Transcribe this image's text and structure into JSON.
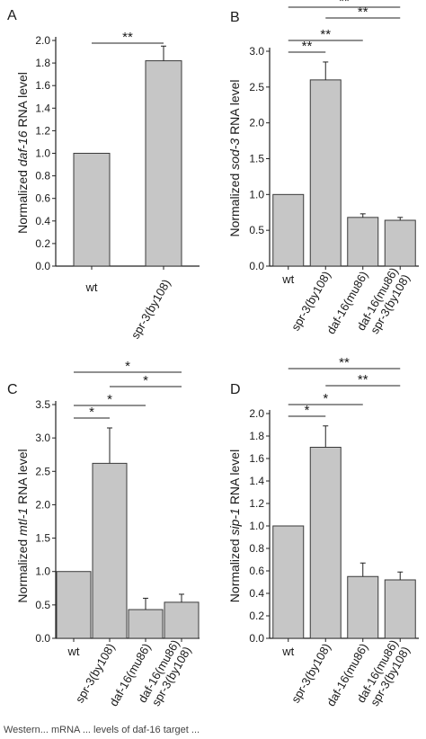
{
  "colors": {
    "bar": "#c6c6c6",
    "bar_stroke": "#3a3a3a",
    "axis": "#222222",
    "text": "#1a1a1a"
  },
  "caption": "Western... mRNA ... levels of daf-16 target ...",
  "chart_data": [
    {
      "type": "bar",
      "panel": "A",
      "categories": [
        "wt",
        "spr-3(by108)"
      ],
      "values": [
        1.0,
        1.82
      ],
      "errors": [
        0.0,
        0.13
      ],
      "ylabel": "Normalized daf-16 RNA level",
      "ylabel_gene": "daf-16",
      "ylim": [
        0.0,
        2.0
      ],
      "yticks": [
        "0.0",
        "0.2",
        "0.4",
        "0.6",
        "0.8",
        "1.0",
        "1.2",
        "1.4",
        "1.6",
        "1.8",
        "2.0"
      ],
      "significance": [
        {
          "from": 0,
          "to": 1,
          "label": "**"
        }
      ]
    },
    {
      "type": "bar",
      "panel": "B",
      "categories": [
        "wt",
        "spr-3(by108)",
        "daf-16(mu86)",
        "daf-16(mu86)\nspr-3(by108)"
      ],
      "values": [
        1.0,
        2.6,
        0.68,
        0.64
      ],
      "errors": [
        0.0,
        0.25,
        0.05,
        0.04
      ],
      "ylabel": "Normalized sod-3 RNA level",
      "ylabel_gene": "sod-3",
      "ylim": [
        0.0,
        3.0
      ],
      "yticks": [
        "0.0",
        "0.5",
        "1.0",
        "1.5",
        "2.0",
        "2.5",
        "3.0"
      ],
      "significance": [
        {
          "from": 0,
          "to": 1,
          "label": "**"
        },
        {
          "from": 0,
          "to": 2,
          "label": "**"
        },
        {
          "from": 1,
          "to": 3,
          "label": "**"
        },
        {
          "from": 0,
          "to": 3,
          "label": "**"
        }
      ]
    },
    {
      "type": "bar",
      "panel": "C",
      "categories": [
        "wt",
        "spr-3(by108)",
        "daf-16(mu86)",
        "daf-16(mu86)\nspr-3(by108)"
      ],
      "values": [
        1.0,
        2.62,
        0.43,
        0.54
      ],
      "errors": [
        0.0,
        0.53,
        0.17,
        0.12
      ],
      "ylabel": "Normalized mtl-1 RNA level",
      "ylabel_gene": "mtl-1",
      "ylim": [
        0.0,
        3.5
      ],
      "yticks": [
        "0.0",
        "0.5",
        "1.0",
        "1.5",
        "2.0",
        "2.5",
        "3.0",
        "3.5"
      ],
      "significance": [
        {
          "from": 0,
          "to": 1,
          "label": "*"
        },
        {
          "from": 0,
          "to": 2,
          "label": "*"
        },
        {
          "from": 1,
          "to": 3,
          "label": "*"
        },
        {
          "from": 0,
          "to": 3,
          "label": "*"
        }
      ]
    },
    {
      "type": "bar",
      "panel": "D",
      "categories": [
        "wt",
        "spr-3(by108)",
        "daf-16(mu86)",
        "daf-16(mu86)\nspr-3(by108)"
      ],
      "values": [
        1.0,
        1.7,
        0.55,
        0.52
      ],
      "errors": [
        0.0,
        0.19,
        0.12,
        0.07
      ],
      "ylabel": "Normalized sip-1 RNA level",
      "ylabel_gene": "sip-1",
      "ylim": [
        0.0,
        2.0
      ],
      "yticks": [
        "0.0",
        "0.2",
        "0.4",
        "0.6",
        "0.8",
        "1.0",
        "1.2",
        "1.4",
        "1.6",
        "1.8",
        "2.0"
      ],
      "significance": [
        {
          "from": 0,
          "to": 1,
          "label": "*"
        },
        {
          "from": 0,
          "to": 2,
          "label": "*"
        },
        {
          "from": 1,
          "to": 3,
          "label": "**"
        },
        {
          "from": 0,
          "to": 3,
          "label": "**"
        }
      ]
    }
  ]
}
